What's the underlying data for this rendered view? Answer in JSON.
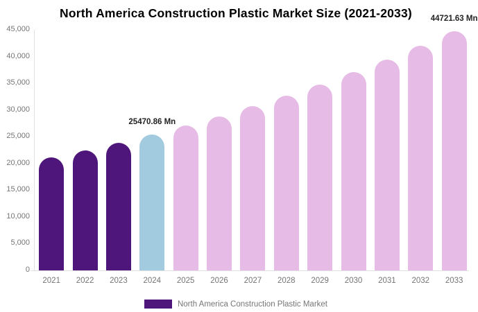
{
  "chart_data": {
    "type": "bar",
    "title": "North America Construction Plastic Market Size (2021-2033)",
    "categories": [
      "2021",
      "2022",
      "2023",
      "2024",
      "2025",
      "2026",
      "2027",
      "2028",
      "2029",
      "2030",
      "2031",
      "2032",
      "2033"
    ],
    "values": [
      21114,
      22477,
      23928,
      25470.86,
      27113,
      28861,
      30722,
      32703,
      34812,
      37057,
      39446,
      41990,
      44721.63
    ],
    "bar_colors": [
      "#4e167a",
      "#4e167a",
      "#4e167a",
      "#a3cbe0",
      "#e6bce6",
      "#e6bce6",
      "#e6bce6",
      "#e6bce6",
      "#e6bce6",
      "#e6bce6",
      "#e6bce6",
      "#e6bce6",
      "#e6bce6"
    ],
    "xlabel": "",
    "ylabel": "",
    "ylim": [
      0,
      45000
    ],
    "y_tick_values": [
      0,
      5000,
      10000,
      15000,
      20000,
      25000,
      30000,
      35000,
      40000,
      45000
    ],
    "y_tick_labels": [
      "0",
      "5,000",
      "10,000",
      "15,000",
      "20,000",
      "25,000",
      "30,000",
      "35,000",
      "40,000",
      "45,000"
    ],
    "grid": "off",
    "legend_position": "bottom",
    "legend_label": "North America Construction Plastic Market",
    "data_labels": [
      {
        "category": "2024",
        "text": "25470.86 Mn"
      },
      {
        "category": "2033",
        "text": "44721.63 Mn"
      }
    ],
    "colors": {
      "historical_bar": "#4e167a",
      "current_year_bar": "#a3cbe0",
      "forecast_bar": "#e6bce6",
      "axis_text": "#757575",
      "axis_line": "#e0e0e0",
      "title_text": "#000000",
      "value_label_text": "#222222",
      "legend_text": "#757575",
      "background": "#ffffff"
    }
  }
}
